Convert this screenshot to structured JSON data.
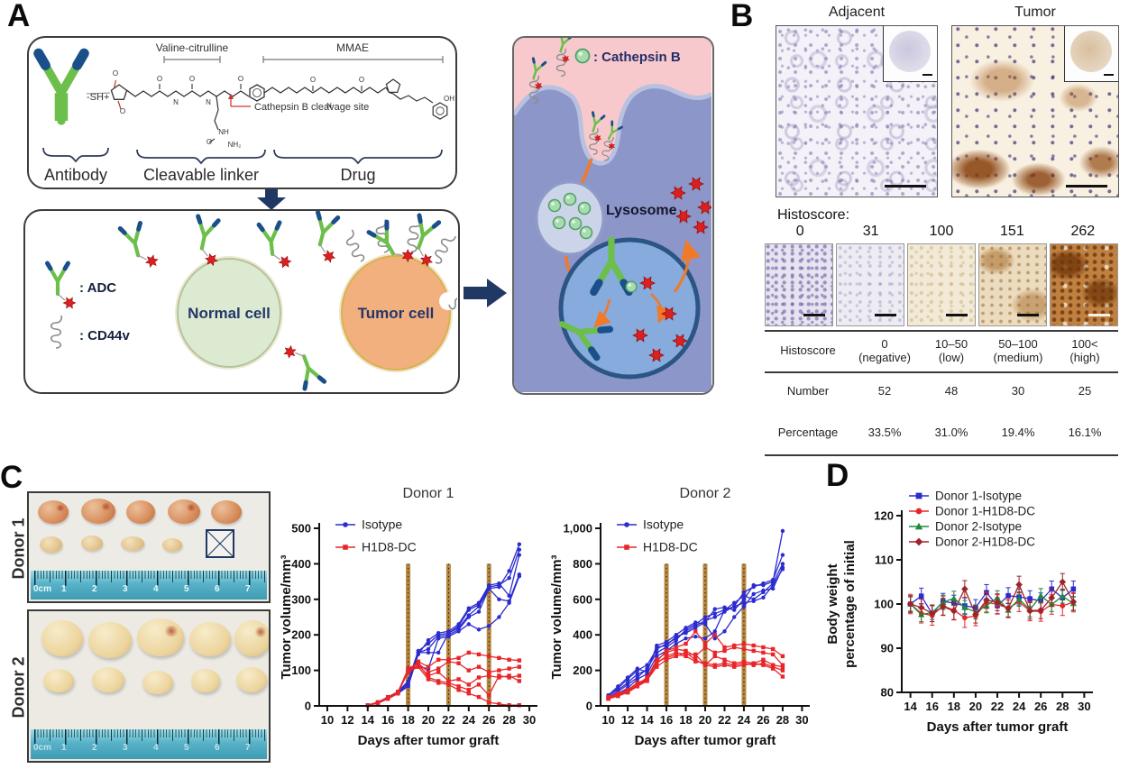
{
  "panels": {
    "a": "A",
    "b": "B",
    "c": "C",
    "d": "D"
  },
  "colors": {
    "isotype_blue": "#2b2bd0",
    "h1d8_red": "#e8262a",
    "donor2_isotype_green": "#1f8a3b",
    "donor2_h1d8_darkred": "#9e2428",
    "dose_bar": "#b8873f",
    "antibody_green": "#6cbf4a",
    "antibody_tip_navy": "#1a4f8a",
    "drug_red": "#dc2020",
    "normal_cell_fill": "#dcead2",
    "tumor_cell_fill": "#f3b07f",
    "extracellular_pink": "#f7c9cd",
    "cell_purple": "#8d96c8",
    "endosome_blue": "#86abdc",
    "lysosome_fill": "#ccd4ea",
    "cathepsin_green": "#a8dcb0",
    "arrow_orange": "#f07a28",
    "navy_arrow": "#1f3864"
  },
  "panel_a": {
    "structure_box": {
      "valine_citrulline": "Valine-citrulline",
      "mmae": "MMAE",
      "sh": "-SH+",
      "cleavage": "Cathepsin B cleavage site",
      "antibody": "Antibody",
      "linker": "Cleavable linker",
      "drug": "Drug",
      "atoms": [
        [
          "O",
          96,
          42
        ],
        [
          "O",
          104,
          84
        ],
        [
          "O",
          145,
          48
        ],
        [
          "N",
          163,
          74
        ],
        [
          "O",
          181,
          48
        ],
        [
          "N",
          199,
          74
        ],
        [
          "O",
          235,
          48
        ],
        [
          "NH",
          216,
          107
        ],
        [
          "O",
          200,
          118
        ],
        [
          "NH₂",
          228,
          121
        ],
        [
          "O",
          315,
          49
        ],
        [
          "N",
          333,
          78
        ],
        [
          "O",
          369,
          49
        ],
        [
          "OH",
          466,
          70
        ]
      ]
    },
    "cells_box": {
      "adc_legend": ": ADC",
      "cd44v_legend": ": CD44v",
      "normal_cell": "Normal cell",
      "tumor_cell": "Tumor cell"
    },
    "mechanism_box": {
      "cathepsin_legend": ": Cathepsin B",
      "lysosome": "Lysosome"
    }
  },
  "panel_b": {
    "adjacent_title": "Adjacent",
    "tumor_title": "Tumor",
    "histoscore_label": "Histoscore:",
    "scores": [
      "0",
      "31",
      "100",
      "151",
      "262"
    ],
    "table": {
      "header_col": "Histoscore",
      "cols": [
        [
          "0",
          "(negative)"
        ],
        [
          "10–50",
          "(low)"
        ],
        [
          "50–100",
          "(medium)"
        ],
        [
          "100<",
          "(high)"
        ]
      ],
      "rows": [
        {
          "label": "Number",
          "values": [
            "52",
            "48",
            "30",
            "25"
          ]
        },
        {
          "label": "Percentage",
          "values": [
            "33.5%",
            "31.0%",
            "19.4%",
            "16.1%"
          ]
        }
      ]
    }
  },
  "panel_c": {
    "donor1_label": "Donor 1",
    "donor2_label": "Donor 2",
    "ruler_marks": [
      "0cm",
      "1",
      "2",
      "3",
      "4",
      "5",
      "6",
      "7"
    ]
  },
  "chart_data": [
    {
      "name": "donor1-tumor-volume",
      "type": "line",
      "title": "Donor 1",
      "xlabel": "Days after tumor graft",
      "ylabel": "Tumor volume/mm³",
      "xlim": [
        9.2,
        30.8
      ],
      "ylim": [
        0,
        500
      ],
      "xticks": [
        10,
        12,
        14,
        16,
        18,
        20,
        22,
        24,
        26,
        28,
        30
      ],
      "yticks": [
        0,
        100,
        200,
        300,
        400,
        500
      ],
      "dose_days": [
        18,
        22,
        26
      ],
      "dose_top": 400,
      "legend": [
        {
          "label": "Isotype",
          "color": "#2b2bd0",
          "marker": "circle"
        },
        {
          "label": "H1D8-DC",
          "color": "#e8262a",
          "marker": "square"
        }
      ],
      "x": [
        14,
        15,
        16,
        17,
        18,
        19,
        20,
        21,
        22,
        23,
        24,
        25,
        26,
        27,
        28,
        29
      ],
      "series": [
        {
          "group": "Isotype",
          "color": "#2b2bd0",
          "marker": "circle",
          "y": [
            2,
            8,
            22,
            35,
            60,
            150,
            160,
            195,
            200,
            215,
            250,
            265,
            330,
            335,
            380,
            455
          ]
        },
        {
          "group": "Isotype",
          "color": "#2b2bd0",
          "marker": "circle",
          "y": [
            2,
            10,
            25,
            40,
            70,
            155,
            175,
            200,
            205,
            225,
            270,
            285,
            335,
            340,
            360,
            440
          ]
        },
        {
          "group": "Isotype",
          "color": "#2b2bd0",
          "marker": "circle",
          "y": [
            2,
            8,
            20,
            35,
            55,
            145,
            185,
            205,
            210,
            230,
            275,
            290,
            340,
            345,
            310,
            425
          ]
        },
        {
          "group": "Isotype",
          "color": "#2b2bd0",
          "marker": "circle",
          "y": [
            2,
            10,
            25,
            38,
            65,
            150,
            150,
            150,
            205,
            220,
            255,
            280,
            330,
            300,
            295,
            370
          ]
        },
        {
          "group": "Isotype",
          "color": "#2b2bd0",
          "marker": "circle",
          "y": [
            2,
            8,
            22,
            40,
            100,
            110,
            105,
            190,
            195,
            210,
            230,
            215,
            225,
            250,
            290,
            365
          ]
        },
        {
          "group": "H1D8-DC",
          "color": "#e8262a",
          "marker": "square",
          "y": [
            2,
            10,
            25,
            40,
            100,
            125,
            110,
            130,
            130,
            135,
            150,
            145,
            140,
            135,
            130,
            128
          ]
        },
        {
          "group": "H1D8-DC",
          "color": "#e8262a",
          "marker": "square",
          "y": [
            2,
            8,
            22,
            38,
            105,
            120,
            95,
            105,
            125,
            120,
            100,
            110,
            95,
            100,
            105,
            110
          ]
        },
        {
          "group": "H1D8-DC",
          "color": "#e8262a",
          "marker": "square",
          "y": [
            2,
            10,
            24,
            40,
            95,
            115,
            85,
            95,
            70,
            75,
            60,
            80,
            85,
            80,
            85,
            70
          ]
        },
        {
          "group": "H1D8-DC",
          "color": "#e8262a",
          "marker": "square",
          "y": [
            2,
            8,
            20,
            35,
            100,
            120,
            80,
            70,
            65,
            55,
            45,
            60,
            30,
            85,
            80,
            85
          ]
        },
        {
          "group": "H1D8-DC",
          "color": "#e8262a",
          "marker": "square",
          "y": [
            2,
            10,
            22,
            38,
            95,
            110,
            75,
            65,
            60,
            45,
            35,
            25,
            10,
            5,
            2,
            2
          ]
        }
      ]
    },
    {
      "name": "donor2-tumor-volume",
      "type": "line",
      "title": "Donor 2",
      "xlabel": "Days after tumor graft",
      "ylabel": "Tumor volume/mm³",
      "xlim": [
        9.2,
        30.8
      ],
      "ylim": [
        0,
        1000
      ],
      "xticks": [
        10,
        12,
        14,
        16,
        18,
        20,
        22,
        24,
        26,
        28,
        30
      ],
      "yticks": [
        0,
        200,
        400,
        600,
        800,
        1000
      ],
      "ytick_labels": [
        "0",
        "200",
        "400",
        "600",
        "800",
        "1,000"
      ],
      "dose_days": [
        16,
        20,
        24
      ],
      "dose_top": 800,
      "legend": [
        {
          "label": "Isotype",
          "color": "#2b2bd0",
          "marker": "circle"
        },
        {
          "label": "H1D8-DC",
          "color": "#e8262a",
          "marker": "square"
        }
      ],
      "x": [
        10,
        11,
        12,
        13,
        14,
        15,
        16,
        17,
        18,
        19,
        20,
        21,
        22,
        23,
        24,
        25,
        26,
        27,
        28
      ],
      "series": [
        {
          "group": "Isotype",
          "color": "#2b2bd0",
          "marker": "circle",
          "y": [
            60,
            90,
            130,
            180,
            200,
            330,
            340,
            390,
            410,
            440,
            470,
            545,
            555,
            540,
            600,
            680,
            680,
            700,
            985
          ]
        },
        {
          "group": "Isotype",
          "color": "#2b2bd0",
          "marker": "circle",
          "y": [
            55,
            100,
            150,
            200,
            230,
            320,
            350,
            380,
            420,
            450,
            480,
            500,
            530,
            560,
            640,
            670,
            690,
            710,
            850
          ]
        },
        {
          "group": "Isotype",
          "color": "#2b2bd0",
          "marker": "circle",
          "y": [
            50,
            80,
            120,
            160,
            210,
            300,
            330,
            370,
            430,
            460,
            500,
            520,
            540,
            580,
            620,
            600,
            640,
            690,
            800
          ]
        },
        {
          "group": "Isotype",
          "color": "#2b2bd0",
          "marker": "circle",
          "y": [
            60,
            110,
            160,
            210,
            190,
            340,
            360,
            400,
            440,
            470,
            460,
            380,
            420,
            500,
            560,
            630,
            650,
            660,
            780
          ]
        },
        {
          "group": "Isotype",
          "color": "#2b2bd0",
          "marker": "circle",
          "y": [
            45,
            70,
            100,
            150,
            180,
            280,
            310,
            350,
            380,
            390,
            380,
            420,
            540,
            560,
            580,
            590,
            610,
            680,
            770
          ]
        },
        {
          "group": "H1D8-DC",
          "color": "#e8262a",
          "marker": "square",
          "y": [
            50,
            70,
            90,
            130,
            150,
            250,
            310,
            330,
            350,
            420,
            350,
            400,
            330,
            340,
            350,
            340,
            330,
            320,
            280
          ]
        },
        {
          "group": "H1D8-DC",
          "color": "#e8262a",
          "marker": "square",
          "y": [
            45,
            60,
            80,
            120,
            160,
            260,
            300,
            320,
            310,
            280,
            330,
            300,
            310,
            330,
            320,
            310,
            300,
            290,
            230
          ]
        },
        {
          "group": "H1D8-DC",
          "color": "#e8262a",
          "marker": "square",
          "y": [
            40,
            55,
            75,
            110,
            140,
            240,
            280,
            300,
            290,
            290,
            230,
            280,
            260,
            240,
            250,
            240,
            260,
            230,
            220
          ]
        },
        {
          "group": "H1D8-DC",
          "color": "#e8262a",
          "marker": "square",
          "y": [
            50,
            65,
            85,
            120,
            150,
            250,
            270,
            290,
            280,
            250,
            240,
            230,
            240,
            230,
            240,
            230,
            240,
            220,
            200
          ]
        },
        {
          "group": "H1D8-DC",
          "color": "#e8262a",
          "marker": "square",
          "y": [
            40,
            60,
            80,
            115,
            145,
            220,
            260,
            280,
            300,
            260,
            230,
            220,
            230,
            220,
            230,
            240,
            230,
            210,
            165
          ]
        }
      ]
    },
    {
      "name": "body-weight",
      "type": "line",
      "title": "",
      "xlabel": "Days after tumor graft",
      "ylabel": [
        "Body weight",
        "percentage of initial"
      ],
      "xlim": [
        13.2,
        30.8
      ],
      "ylim": [
        80,
        120
      ],
      "xticks": [
        14,
        16,
        18,
        20,
        22,
        24,
        26,
        28,
        30
      ],
      "yticks": [
        80,
        90,
        100,
        110,
        120
      ],
      "legend": [
        {
          "label": "Donor 1-Isotype",
          "color": "#2b2bd0",
          "marker": "square"
        },
        {
          "label": "Donor 1-H1D8-DC",
          "color": "#e8262a",
          "marker": "circle"
        },
        {
          "label": "Donor 2-Isotype",
          "color": "#1f8a3b",
          "marker": "triangle"
        },
        {
          "label": "Donor 2-H1D8-DC",
          "color": "#9e2428",
          "marker": "diamond"
        }
      ],
      "x": [
        14,
        15,
        16,
        17,
        18,
        19,
        20,
        21,
        22,
        23,
        24,
        25,
        26,
        27,
        28,
        29
      ],
      "series": [
        {
          "group": "Donor 1-Isotype",
          "color": "#2b2bd0",
          "marker": "square",
          "err": 1.8,
          "y": [
            100,
            101.8,
            97.8,
            100.6,
            100.2,
            99.6,
            99.2,
            102.6,
            99.6,
            101.9,
            101.6,
            101.2,
            100.7,
            103.4,
            101.4,
            103.4
          ]
        },
        {
          "group": "Donor 1-H1D8-DC",
          "color": "#e8262a",
          "marker": "circle",
          "err": 2.2,
          "y": [
            100,
            97.9,
            97.4,
            99.6,
            98.6,
            96.9,
            97.3,
            100.4,
            99.9,
            99.1,
            100.5,
            98.4,
            98.3,
            99.9,
            99.6,
            100.4
          ]
        },
        {
          "group": "Donor 2-Isotype",
          "color": "#1f8a3b",
          "marker": "triangle",
          "err": 1.6,
          "y": [
            100,
            97.6,
            98.1,
            100.4,
            101.3,
            99.2,
            98.2,
            99.6,
            101.4,
            98.6,
            101.1,
            98.7,
            101.9,
            99.9,
            101.8,
            100.1
          ]
        },
        {
          "group": "Donor 2-H1D8-DC",
          "color": "#9e2428",
          "marker": "diamond",
          "err": 1.9,
          "y": [
            100,
            99.2,
            97.9,
            99.4,
            98.4,
            103.4,
            97.6,
            100.9,
            100.4,
            99,
            104.4,
            98.5,
            98.6,
            101.4,
            105,
            100.5
          ]
        }
      ]
    }
  ]
}
